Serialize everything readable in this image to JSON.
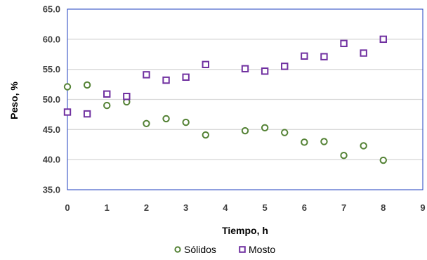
{
  "chart_data": {
    "type": "scatter",
    "title": "",
    "xlabel": "Tiempo, h",
    "ylabel": "Peso, %",
    "xlim": [
      0,
      9
    ],
    "ylim": [
      35.0,
      65.0
    ],
    "x_ticks": [
      "0",
      "1",
      "2",
      "3",
      "4",
      "5",
      "6",
      "7",
      "8",
      "9"
    ],
    "y_ticks": [
      "35.0",
      "40.0",
      "45.0",
      "50.0",
      "55.0",
      "60.0",
      "65.0"
    ],
    "grid": "horizontal",
    "legend_position": "bottom",
    "series": [
      {
        "name": "Sólidos",
        "marker": "circle",
        "color": "#548235",
        "points": [
          {
            "x": 0,
            "y": 52.1
          },
          {
            "x": 0.5,
            "y": 52.4
          },
          {
            "x": 1,
            "y": 49.0
          },
          {
            "x": 1.5,
            "y": 49.6
          },
          {
            "x": 2,
            "y": 46.0
          },
          {
            "x": 2.5,
            "y": 46.8
          },
          {
            "x": 3,
            "y": 46.2
          },
          {
            "x": 3.5,
            "y": 44.1
          },
          {
            "x": 4.5,
            "y": 44.8
          },
          {
            "x": 5,
            "y": 45.3
          },
          {
            "x": 5.5,
            "y": 44.5
          },
          {
            "x": 6,
            "y": 42.9
          },
          {
            "x": 6.5,
            "y": 43.0
          },
          {
            "x": 7,
            "y": 40.7
          },
          {
            "x": 7.5,
            "y": 42.3
          },
          {
            "x": 8,
            "y": 39.9
          }
        ]
      },
      {
        "name": "Mosto",
        "marker": "square",
        "color": "#7030a0",
        "points": [
          {
            "x": 0,
            "y": 47.9
          },
          {
            "x": 0.5,
            "y": 47.6
          },
          {
            "x": 1,
            "y": 50.9
          },
          {
            "x": 1.5,
            "y": 50.5
          },
          {
            "x": 2,
            "y": 54.1
          },
          {
            "x": 2.5,
            "y": 53.2
          },
          {
            "x": 3,
            "y": 53.7
          },
          {
            "x": 3.5,
            "y": 55.8
          },
          {
            "x": 4.5,
            "y": 55.1
          },
          {
            "x": 5,
            "y": 54.7
          },
          {
            "x": 5.5,
            "y": 55.5
          },
          {
            "x": 6,
            "y": 57.2
          },
          {
            "x": 6.5,
            "y": 57.1
          },
          {
            "x": 7,
            "y": 59.3
          },
          {
            "x": 7.5,
            "y": 57.7
          },
          {
            "x": 8,
            "y": 60.0
          }
        ]
      }
    ],
    "colors": {
      "axis": "#1f3fbf",
      "grid": "#d9d9d9",
      "tick_text": "#3f3f3f"
    }
  }
}
